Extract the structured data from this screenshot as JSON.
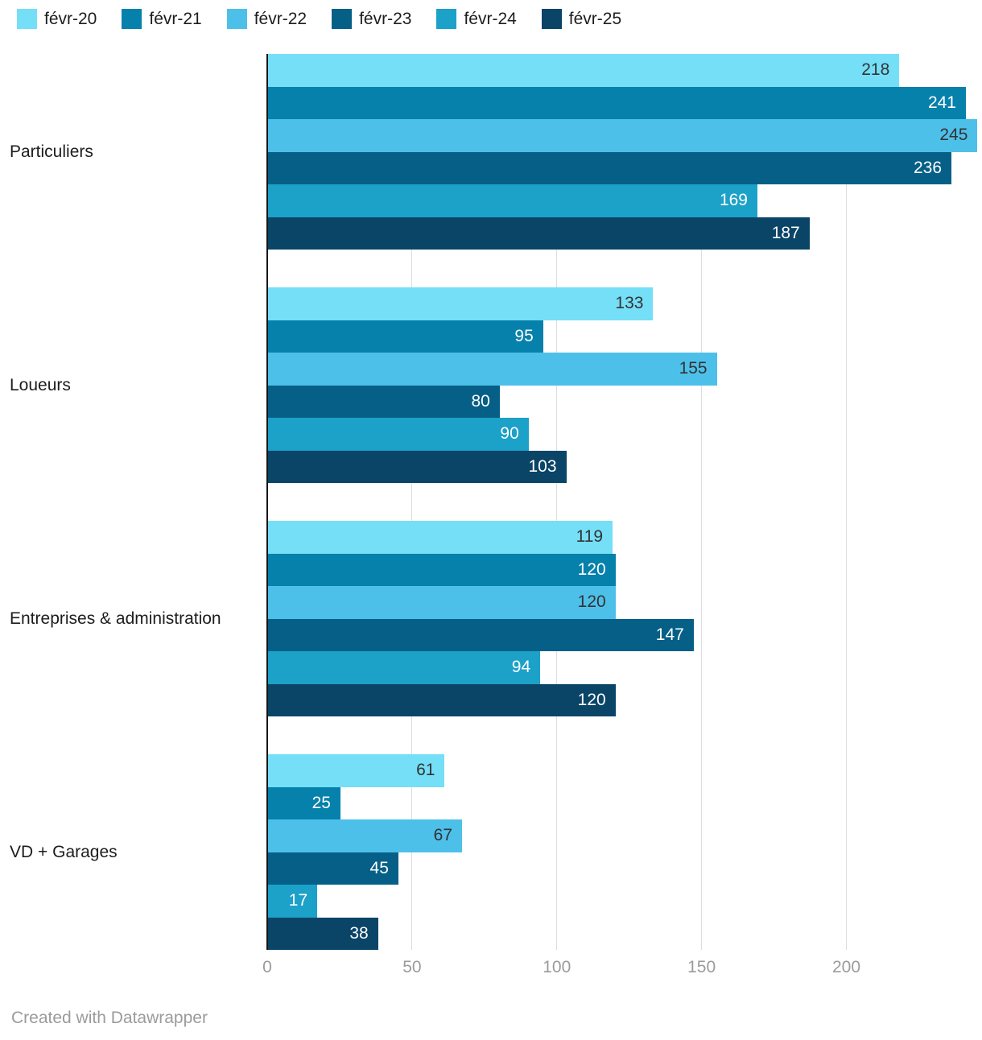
{
  "chart_data": {
    "type": "bar",
    "orientation": "horizontal",
    "categories": [
      "Particuliers",
      "Loueurs",
      "Entreprises & administration",
      "VD + Garages"
    ],
    "series": [
      {
        "name": "févr-20",
        "color": "#74dff7",
        "label_text_color": "#333333",
        "values": [
          218,
          133,
          119,
          61
        ]
      },
      {
        "name": "févr-21",
        "color": "#0581ab",
        "label_text_color": "#ffffff",
        "values": [
          241,
          95,
          120,
          25
        ]
      },
      {
        "name": "févr-22",
        "color": "#4dc0ea",
        "label_text_color": "#333333",
        "values": [
          245,
          155,
          120,
          67
        ]
      },
      {
        "name": "févr-23",
        "color": "#065f86",
        "label_text_color": "#ffffff",
        "values": [
          236,
          80,
          147,
          45
        ]
      },
      {
        "name": "févr-24",
        "color": "#1ca1c9",
        "label_text_color": "#ffffff",
        "values": [
          169,
          90,
          94,
          17
        ]
      },
      {
        "name": "févr-25",
        "color": "#0a4467",
        "label_text_color": "#ffffff",
        "values": [
          187,
          103,
          120,
          38
        ]
      }
    ],
    "xlim": [
      0,
      246
    ],
    "x_ticks": [
      0,
      50,
      100,
      150,
      200
    ],
    "grid": "vertical",
    "grid_color": "#dddddd",
    "axis_line_color": "#161616",
    "tick_label_color": "#9b9b9b",
    "legend_position": "top-left",
    "value_labels": "inside-end",
    "title": ""
  },
  "footer": {
    "credit": "Created with Datawrapper"
  }
}
